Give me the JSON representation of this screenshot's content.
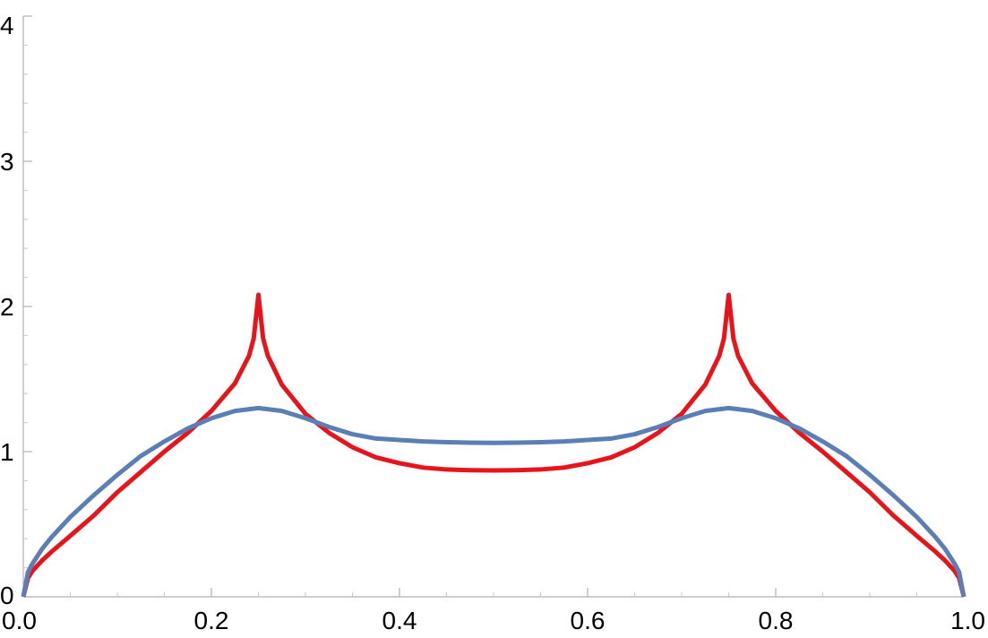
{
  "chart_data": {
    "type": "line",
    "title": "",
    "xlabel": "",
    "ylabel": "",
    "xlim": [
      0,
      1
    ],
    "ylim": [
      0,
      4
    ],
    "grid": false,
    "x_ticks": [
      "0.0",
      "0.2",
      "0.4",
      "0.6",
      "0.8",
      "1.0"
    ],
    "y_ticks": [
      "0",
      "1",
      "2",
      "3",
      "4"
    ],
    "series": [
      {
        "color": "#e8141b",
        "x": [
          0,
          0.005,
          0.01,
          0.02,
          0.03,
          0.05,
          0.075,
          0.1,
          0.125,
          0.15,
          0.175,
          0.2,
          0.225,
          0.24,
          0.245,
          0.25,
          0.255,
          0.26,
          0.275,
          0.3,
          0.325,
          0.35,
          0.375,
          0.4,
          0.425,
          0.45,
          0.475,
          0.5,
          0.525,
          0.55,
          0.575,
          0.6,
          0.625,
          0.65,
          0.675,
          0.7,
          0.725,
          0.74,
          0.745,
          0.75,
          0.755,
          0.76,
          0.775,
          0.8,
          0.825,
          0.85,
          0.875,
          0.9,
          0.925,
          0.95,
          0.97,
          0.98,
          0.99,
          0.995,
          1.0
        ],
        "y": [
          0,
          0.13,
          0.18,
          0.25,
          0.31,
          0.42,
          0.56,
          0.72,
          0.86,
          1.0,
          1.13,
          1.28,
          1.47,
          1.66,
          1.78,
          2.08,
          1.78,
          1.66,
          1.46,
          1.26,
          1.13,
          1.03,
          0.96,
          0.92,
          0.89,
          0.877,
          0.872,
          0.87,
          0.872,
          0.877,
          0.89,
          0.92,
          0.96,
          1.03,
          1.13,
          1.26,
          1.46,
          1.66,
          1.78,
          2.08,
          1.78,
          1.66,
          1.47,
          1.28,
          1.13,
          1.0,
          0.86,
          0.72,
          0.56,
          0.42,
          0.31,
          0.25,
          0.18,
          0.13,
          0
        ]
      },
      {
        "color": "#5b7fb5",
        "x": [
          0,
          0.005,
          0.01,
          0.02,
          0.03,
          0.05,
          0.075,
          0.1,
          0.125,
          0.15,
          0.175,
          0.2,
          0.225,
          0.25,
          0.275,
          0.3,
          0.325,
          0.35,
          0.375,
          0.4,
          0.425,
          0.45,
          0.475,
          0.5,
          0.525,
          0.55,
          0.575,
          0.6,
          0.625,
          0.65,
          0.675,
          0.7,
          0.725,
          0.75,
          0.775,
          0.8,
          0.825,
          0.85,
          0.875,
          0.9,
          0.925,
          0.95,
          0.97,
          0.98,
          0.99,
          0.995,
          1.0
        ],
        "y": [
          0,
          0.17,
          0.23,
          0.33,
          0.41,
          0.55,
          0.7,
          0.84,
          0.97,
          1.07,
          1.16,
          1.23,
          1.28,
          1.3,
          1.28,
          1.23,
          1.17,
          1.12,
          1.09,
          1.08,
          1.07,
          1.065,
          1.062,
          1.06,
          1.062,
          1.065,
          1.07,
          1.08,
          1.09,
          1.12,
          1.17,
          1.23,
          1.28,
          1.3,
          1.28,
          1.23,
          1.16,
          1.07,
          0.97,
          0.84,
          0.7,
          0.55,
          0.41,
          0.33,
          0.23,
          0.17,
          0
        ]
      }
    ]
  }
}
